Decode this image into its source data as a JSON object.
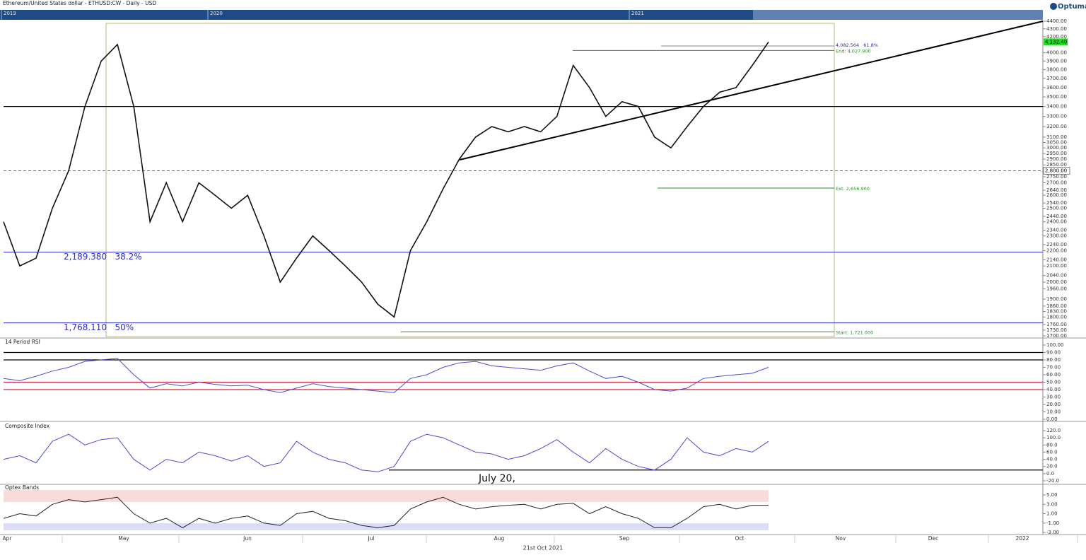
{
  "timeline": {
    "labels": [
      "2019",
      "2020",
      "2021"
    ]
  },
  "brand": "Optuma",
  "x_axis": {
    "labels": [
      "Apr",
      "May",
      "Jun",
      "Jul",
      "Aug",
      "Sep",
      "Oct",
      "Nov",
      "Dec",
      "2022"
    ],
    "caption": "21st Oct 2021"
  },
  "chart_data": [
    {
      "type": "line",
      "title": "Ethereum/United States dollar - ETHUSD:CW - Daily - USD",
      "log_scale": true,
      "color": "#111111",
      "ylim": [
        1700,
        4400
      ],
      "yticks": [
        {
          "value": 4400,
          "label": "4400.00"
        },
        {
          "value": 4300,
          "label": "4300.00"
        },
        {
          "value": 4200,
          "label": "4200.00"
        },
        {
          "value": 4000,
          "label": "4000.00"
        },
        {
          "value": 3900,
          "label": "3900.00"
        },
        {
          "value": 3800,
          "label": "3800.00"
        },
        {
          "value": 3700,
          "label": "3700.00"
        },
        {
          "value": 3600,
          "label": "3600.00"
        },
        {
          "value": 3500,
          "label": "3500.00"
        },
        {
          "value": 3400,
          "label": "3400.00"
        },
        {
          "value": 3300,
          "label": "3300.00"
        },
        {
          "value": 3200,
          "label": "3200.00"
        },
        {
          "value": 3100,
          "label": "3100.00"
        },
        {
          "value": 3050,
          "label": "3050.00"
        },
        {
          "value": 3000,
          "label": "3000.00"
        },
        {
          "value": 2950,
          "label": "2950.00"
        },
        {
          "value": 2900,
          "label": "2900.00"
        },
        {
          "value": 2850,
          "label": "2850.00"
        },
        {
          "value": 2750,
          "label": "2750.00"
        },
        {
          "value": 2700,
          "label": "2700.00"
        },
        {
          "value": 2640,
          "label": "2640.00"
        },
        {
          "value": 2600,
          "label": "2600.00"
        },
        {
          "value": 2540,
          "label": "2540.00"
        },
        {
          "value": 2500,
          "label": "2500.00"
        },
        {
          "value": 2440,
          "label": "2440.00"
        },
        {
          "value": 2400,
          "label": "2400.00"
        },
        {
          "value": 2340,
          "label": "2340.00"
        },
        {
          "value": 2300,
          "label": "2300.00"
        },
        {
          "value": 2240,
          "label": "2240.00"
        },
        {
          "value": 2200,
          "label": "2200.00"
        },
        {
          "value": 2140,
          "label": "2140.00"
        },
        {
          "value": 2100,
          "label": "2100.00"
        },
        {
          "value": 2040,
          "label": "2040.00"
        },
        {
          "value": 2000,
          "label": "2000.00"
        },
        {
          "value": 1960,
          "label": "1960.00"
        },
        {
          "value": 1900,
          "label": "1900.00"
        },
        {
          "value": 1860,
          "label": "1860.00"
        },
        {
          "value": 1830,
          "label": "1830.00"
        },
        {
          "value": 1800,
          "label": "1800.00"
        },
        {
          "value": 1760,
          "label": "1760.00"
        },
        {
          "value": 1730,
          "label": "1730.00"
        },
        {
          "value": 1700,
          "label": "1700.00"
        }
      ],
      "values": [
        2400,
        2100,
        2150,
        2500,
        2800,
        3400,
        3900,
        4100,
        3400,
        2400,
        2700,
        2400,
        2700,
        2600,
        2500,
        2600,
        2300,
        2000,
        2150,
        2300,
        2200,
        2100,
        2000,
        1870,
        1800,
        2200,
        2400,
        2650,
        2900,
        3100,
        3200,
        3150,
        3200,
        3150,
        3300,
        3850,
        3600,
        3300,
        3450,
        3400,
        3100,
        3000,
        3200,
        3400,
        3550,
        3600,
        3850,
        4132.4
      ],
      "annotations": [
        {
          "value": 4082.564,
          "label": "4,082.564   61.8%",
          "color": "#2b2bb0"
        },
        {
          "value": 4027.9,
          "label": "End: 4,027.900",
          "color": "#2e8b2e"
        },
        {
          "value": 2656.9,
          "label": "Ext: 2,656.900",
          "color": "#2e8b2e"
        },
        {
          "value": 1721,
          "label": "Start: 1,721.000",
          "color": "#2e8b2e"
        },
        {
          "value": 2189.38,
          "label": "2,189.380   38.2%",
          "color": "#2b2bd0"
        },
        {
          "value": 1768.11,
          "label": "1,768.110   50%",
          "color": "#2b2bd0"
        }
      ],
      "levels": [
        3400,
        2800
      ],
      "level_colors": [
        "#000000",
        "#3a9a3a"
      ],
      "price_label": {
        "value": 4132.4,
        "label": "4,132.40"
      },
      "crosshair": {
        "value": 2800,
        "label": "2,800.00"
      }
    },
    {
      "type": "line",
      "title": "14 Period RSI",
      "color": "#4a4ad0",
      "ylim": [
        0,
        100
      ],
      "yticks": [
        {
          "value": 100,
          "label": "100.00"
        },
        {
          "value": 90,
          "label": "90.00"
        },
        {
          "value": 80,
          "label": "80.00"
        },
        {
          "value": 70,
          "label": "70.00"
        },
        {
          "value": 60,
          "label": "60.00"
        },
        {
          "value": 50,
          "label": "50.00"
        },
        {
          "value": 40,
          "label": "40.00"
        },
        {
          "value": 30,
          "label": "30.00"
        },
        {
          "value": 20,
          "label": "20.00"
        },
        {
          "value": 10,
          "label": "10.00"
        },
        {
          "value": 0,
          "label": "0.00"
        }
      ],
      "values": [
        55,
        52,
        58,
        65,
        70,
        78,
        80,
        82,
        60,
        42,
        48,
        45,
        50,
        47,
        45,
        46,
        40,
        36,
        42,
        48,
        44,
        42,
        40,
        38,
        36,
        55,
        60,
        70,
        76,
        78,
        72,
        70,
        68,
        66,
        72,
        76,
        65,
        55,
        58,
        50,
        40,
        38,
        42,
        55,
        58,
        60,
        62,
        70
      ],
      "levels": [
        90,
        80,
        50,
        40
      ],
      "level_colors": [
        "#000000",
        "#000000",
        "#d0203a",
        "#d0203a"
      ]
    },
    {
      "type": "line",
      "title": "Composite Index",
      "color": "#4a4ad0",
      "ylim": [
        -20,
        120
      ],
      "yticks": [
        {
          "value": 120,
          "label": "120.0"
        },
        {
          "value": 100,
          "label": "100.0"
        },
        {
          "value": 80,
          "label": "80.0"
        },
        {
          "value": 60,
          "label": "60.0"
        },
        {
          "value": 40,
          "label": "40.0"
        },
        {
          "value": 20,
          "label": "20.0"
        },
        {
          "value": 0,
          "label": "0.0"
        },
        {
          "value": -20,
          "label": "-20.0"
        }
      ],
      "values": [
        40,
        50,
        30,
        90,
        110,
        80,
        95,
        100,
        40,
        10,
        40,
        30,
        60,
        50,
        35,
        50,
        20,
        30,
        90,
        60,
        40,
        30,
        10,
        5,
        20,
        90,
        110,
        100,
        80,
        60,
        55,
        40,
        50,
        70,
        95,
        60,
        30,
        70,
        40,
        20,
        10,
        40,
        100,
        60,
        50,
        70,
        60,
        90
      ],
      "levels": [
        10
      ],
      "level_colors": [
        "#000000"
      ],
      "note": "July 20,"
    },
    {
      "type": "line",
      "title": "Optex Bands",
      "color": "#222222",
      "ylim": [
        -3,
        5
      ],
      "yticks": [
        {
          "value": 5,
          "label": "5.00"
        },
        {
          "value": 3,
          "label": "3.00"
        },
        {
          "value": 1,
          "label": "1.00"
        },
        {
          "value": -1,
          "label": "-1.00"
        },
        {
          "value": -3,
          "label": "-3.00"
        }
      ],
      "values": [
        0,
        1,
        0.5,
        3,
        4,
        3.5,
        4,
        4.5,
        1,
        -1,
        0,
        -2,
        0,
        -1,
        0,
        0.5,
        -1,
        -1.5,
        1,
        1.5,
        0,
        -0.5,
        -1.5,
        -2,
        -1.5,
        2,
        3.5,
        4.5,
        3,
        2,
        2.5,
        2.8,
        3,
        2,
        3,
        3.2,
        1,
        2.5,
        1,
        0,
        -2,
        -2,
        0,
        2.5,
        3,
        2,
        2.8,
        2.8
      ],
      "levels": [],
      "level_colors": []
    }
  ]
}
